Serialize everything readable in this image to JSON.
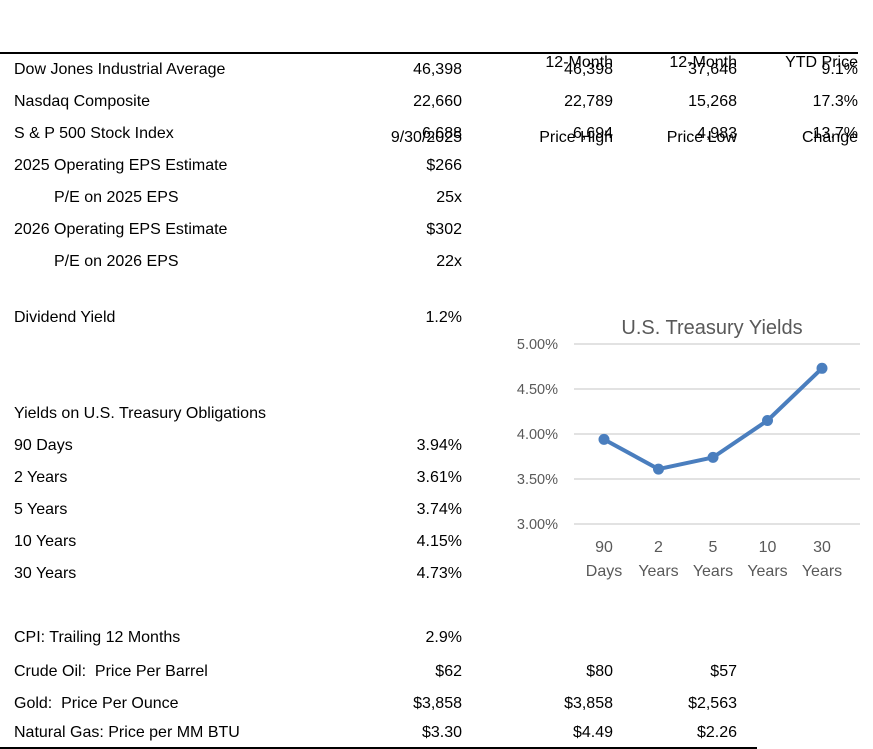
{
  "table": {
    "col_headers": [
      {
        "line1": "",
        "line2": "9/30/2025"
      },
      {
        "line1": "12-Month",
        "line2": "Price High"
      },
      {
        "line1": "12-Month",
        "line2": "Price Low"
      },
      {
        "line1": "YTD Price",
        "line2": "Change"
      }
    ],
    "rows": [
      {
        "label": "Dow Jones Industrial Average",
        "current": "46,398",
        "high": "46,398",
        "low": "37,646",
        "ytd": "9.1%"
      },
      {
        "label": "Nasdaq Composite",
        "current": "22,660",
        "high": "22,789",
        "low": "15,268",
        "ytd": "17.3%"
      },
      {
        "label": "S & P 500 Stock Index",
        "current": "6,688",
        "high": "6,694",
        "low": "4,983",
        "ytd": "13.7%"
      },
      {
        "label": "2025 Operating EPS Estimate",
        "current": "$266"
      },
      {
        "label": "P/E on 2025 EPS",
        "current": "25x",
        "indent": true
      },
      {
        "label": "2026 Operating EPS Estimate",
        "current": "$302"
      },
      {
        "label": "P/E on 2026 EPS",
        "current": "22x",
        "indent": true
      },
      {
        "spacer": true
      },
      {
        "label": "Dividend Yield",
        "current": "1.2%"
      },
      {
        "spacer": true
      },
      {
        "spacer": true
      },
      {
        "label": "Yields on U.S. Treasury Obligations"
      },
      {
        "label": "90 Days",
        "current": "3.94%"
      },
      {
        "label": "2 Years",
        "current": "3.61%"
      },
      {
        "label": "5 Years",
        "current": "3.74%"
      },
      {
        "label": "10 Years",
        "current": "4.15%"
      },
      {
        "label": "30 Years",
        "current": "4.73%"
      },
      {
        "spacer": true
      },
      {
        "label": "CPI: Trailing 12 Months",
        "current": "2.9%"
      },
      {
        "label": "Crude Oil:  Price Per Barrel",
        "current": "$62",
        "high": "$80",
        "low": "$57"
      },
      {
        "label": "Gold:  Price Per Ounce",
        "current": "$3,858",
        "high": "$3,858",
        "low": "$2,563"
      },
      {
        "label": "Natural Gas: Price per MM BTU",
        "current": "$3.30",
        "high": "$4.49",
        "low": "$2.26"
      }
    ]
  },
  "chart_data": {
    "type": "line",
    "title": "U.S. Treasury Yields",
    "categories": [
      "90 Days",
      "2 Years",
      "5 Years",
      "10 Years",
      "30 Years"
    ],
    "series": [
      {
        "name": "U.S. Treasury Yields",
        "values": [
          3.94,
          3.61,
          3.74,
          4.15,
          4.73
        ]
      }
    ],
    "xlabel": "",
    "ylabel": "",
    "ylim": [
      3.0,
      5.0
    ],
    "ytick_step": 0.5,
    "yticks": [
      "3.00%",
      "3.50%",
      "4.00%",
      "4.50%",
      "5.00%"
    ],
    "grid": true,
    "legend": "none",
    "line_color": "#4A7EBE",
    "text_color": "#595959",
    "grid_color": "#D9D9D9"
  }
}
